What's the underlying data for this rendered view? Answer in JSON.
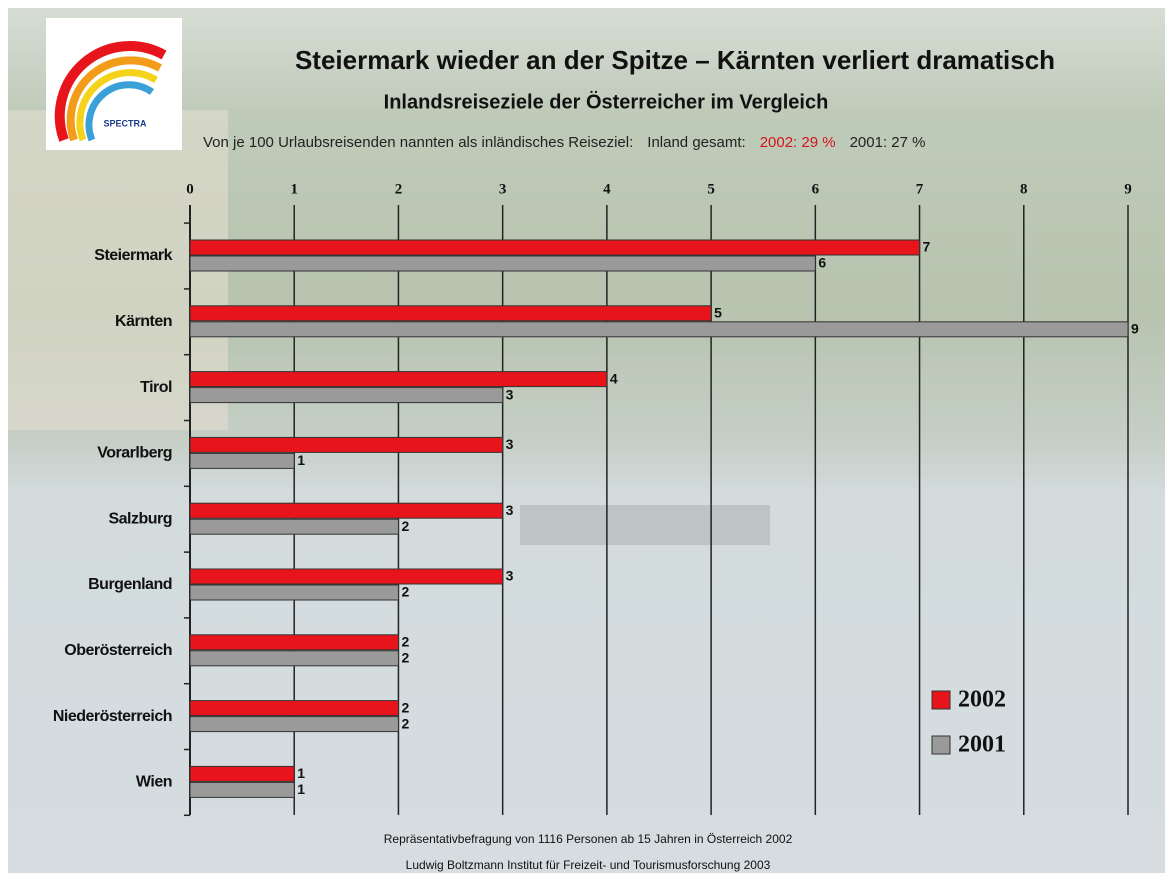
{
  "chart_data": {
    "type": "barh",
    "title": "Steiermark wieder an der Spitze – Kärnten verliert dramatisch",
    "subtitle": "Inlandsreiseziele der Österreicher im Vergleich",
    "annotations": [
      "Von je 100 Urlaubsreisenden nannten als inländisches Reiseziel:",
      "Inland gesamt:",
      "2002: 29 %",
      "2001: 27 %"
    ],
    "annotation_colors": [
      "#222222",
      "#222222",
      "#d4141c",
      "#222222"
    ],
    "logo_text": "SPECTRA",
    "source": [
      "Repräsentativbefragung von 1116 Personen ab 15 Jahren  in Österreich 2002",
      "Ludwig Boltzmann Institut für Freizeit- und Tourismusforschung 2003"
    ],
    "categories": [
      "Steiermark",
      "Kärnten",
      "Tirol",
      "Vorarlberg",
      "Salzburg",
      "Burgenland",
      "Oberösterreich",
      "Niederösterreich",
      "Wien"
    ],
    "series": [
      {
        "name": "2002",
        "color": "#e8141c",
        "values": [
          7,
          5,
          4,
          3,
          3,
          3,
          2,
          2,
          1
        ]
      },
      {
        "name": "2001",
        "color": "#9a9a9a",
        "values": [
          6,
          9,
          3,
          1,
          2,
          2,
          2,
          2,
          1
        ]
      }
    ],
    "xlim": [
      0,
      9
    ],
    "xticks": [
      0,
      1,
      2,
      3,
      4,
      5,
      6,
      7,
      8,
      9
    ],
    "grid": true,
    "legend": "lower right"
  }
}
